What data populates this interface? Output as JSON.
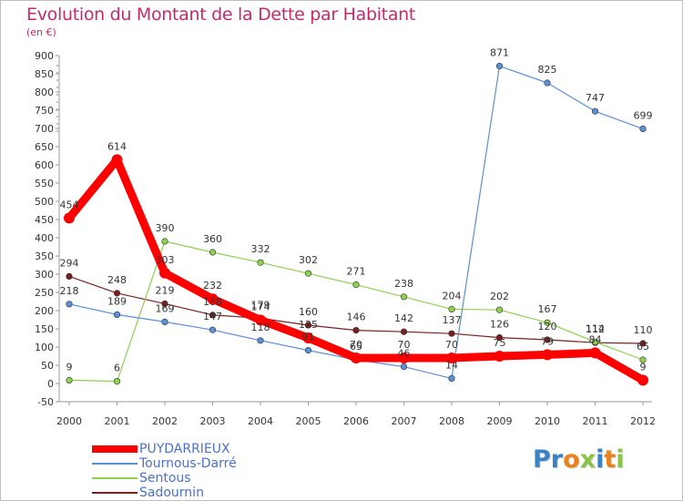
{
  "header": {
    "title": "Evolution du Montant de la Dette par Habitant",
    "subtitle": "(en €)"
  },
  "chart_data": {
    "type": "line",
    "x": [
      "2000",
      "2001",
      "2002",
      "2003",
      "2004",
      "2005",
      "2006",
      "2007",
      "2008",
      "2009",
      "2010",
      "2011",
      "2012"
    ],
    "ylim": [
      -50,
      900
    ],
    "yticks": [
      -50,
      0,
      50,
      100,
      150,
      200,
      250,
      300,
      350,
      400,
      450,
      500,
      550,
      600,
      650,
      700,
      750,
      800,
      850,
      900
    ],
    "grid": false,
    "legend_position": "bottom-left",
    "series": [
      {
        "name": "PUYDARRIEUX",
        "color": "#ff0000",
        "values": [
          454,
          614,
          303,
          232,
          174,
          125,
          70,
          70,
          70,
          75,
          79,
          84,
          9
        ],
        "labels": [
          "454",
          "614",
          "303",
          "232",
          "174",
          "125",
          "70",
          "70",
          "70",
          "75",
          "79",
          "84",
          "9"
        ]
      },
      {
        "name": "Tournous-Darré",
        "color": "#5b8fd6",
        "values": [
          218,
          189,
          169,
          147,
          118,
          91,
          65,
          46,
          14,
          871,
          825,
          747,
          699
        ],
        "labels": [
          "218",
          "189",
          "169",
          "147",
          "118",
          "91",
          "65",
          "46",
          "14",
          "871",
          "825",
          "747",
          "699"
        ]
      },
      {
        "name": "Sentous",
        "color": "#8fd14f",
        "values": [
          9,
          6,
          390,
          360,
          332,
          302,
          271,
          238,
          204,
          202,
          167,
          114,
          65
        ],
        "labels": [
          "9",
          "6",
          "390",
          "360",
          "332",
          "302",
          "271",
          "238",
          "204",
          "202",
          "167",
          "114",
          "65"
        ]
      },
      {
        "name": "Sadournin",
        "color": "#7a1f1f",
        "values": [
          294,
          248,
          219,
          188,
          179,
          160,
          146,
          142,
          137,
          126,
          120,
          112,
          110
        ],
        "labels": [
          "294",
          "248",
          "219",
          "188",
          "179",
          "160",
          "146",
          "142",
          "137",
          "126",
          "120",
          "112",
          "110"
        ]
      }
    ]
  },
  "legend": {
    "items": [
      {
        "name": "PUYDARRIEUX",
        "color": "#ff0000"
      },
      {
        "name": "Tournous-Darré",
        "color": "#5b8fd6"
      },
      {
        "name": "Sentous",
        "color": "#8fd14f"
      },
      {
        "name": "Sadournin",
        "color": "#7a1f1f"
      }
    ]
  },
  "logo": {
    "text": "Proxiti",
    "letters": [
      "P",
      "r",
      "o",
      "x",
      "i",
      "t",
      "i"
    ],
    "colors": [
      "#3b82c4",
      "#3b82c4",
      "#e8821e",
      "#8bc34a",
      "#3b82c4",
      "#e8821e",
      "#8bc34a"
    ]
  }
}
